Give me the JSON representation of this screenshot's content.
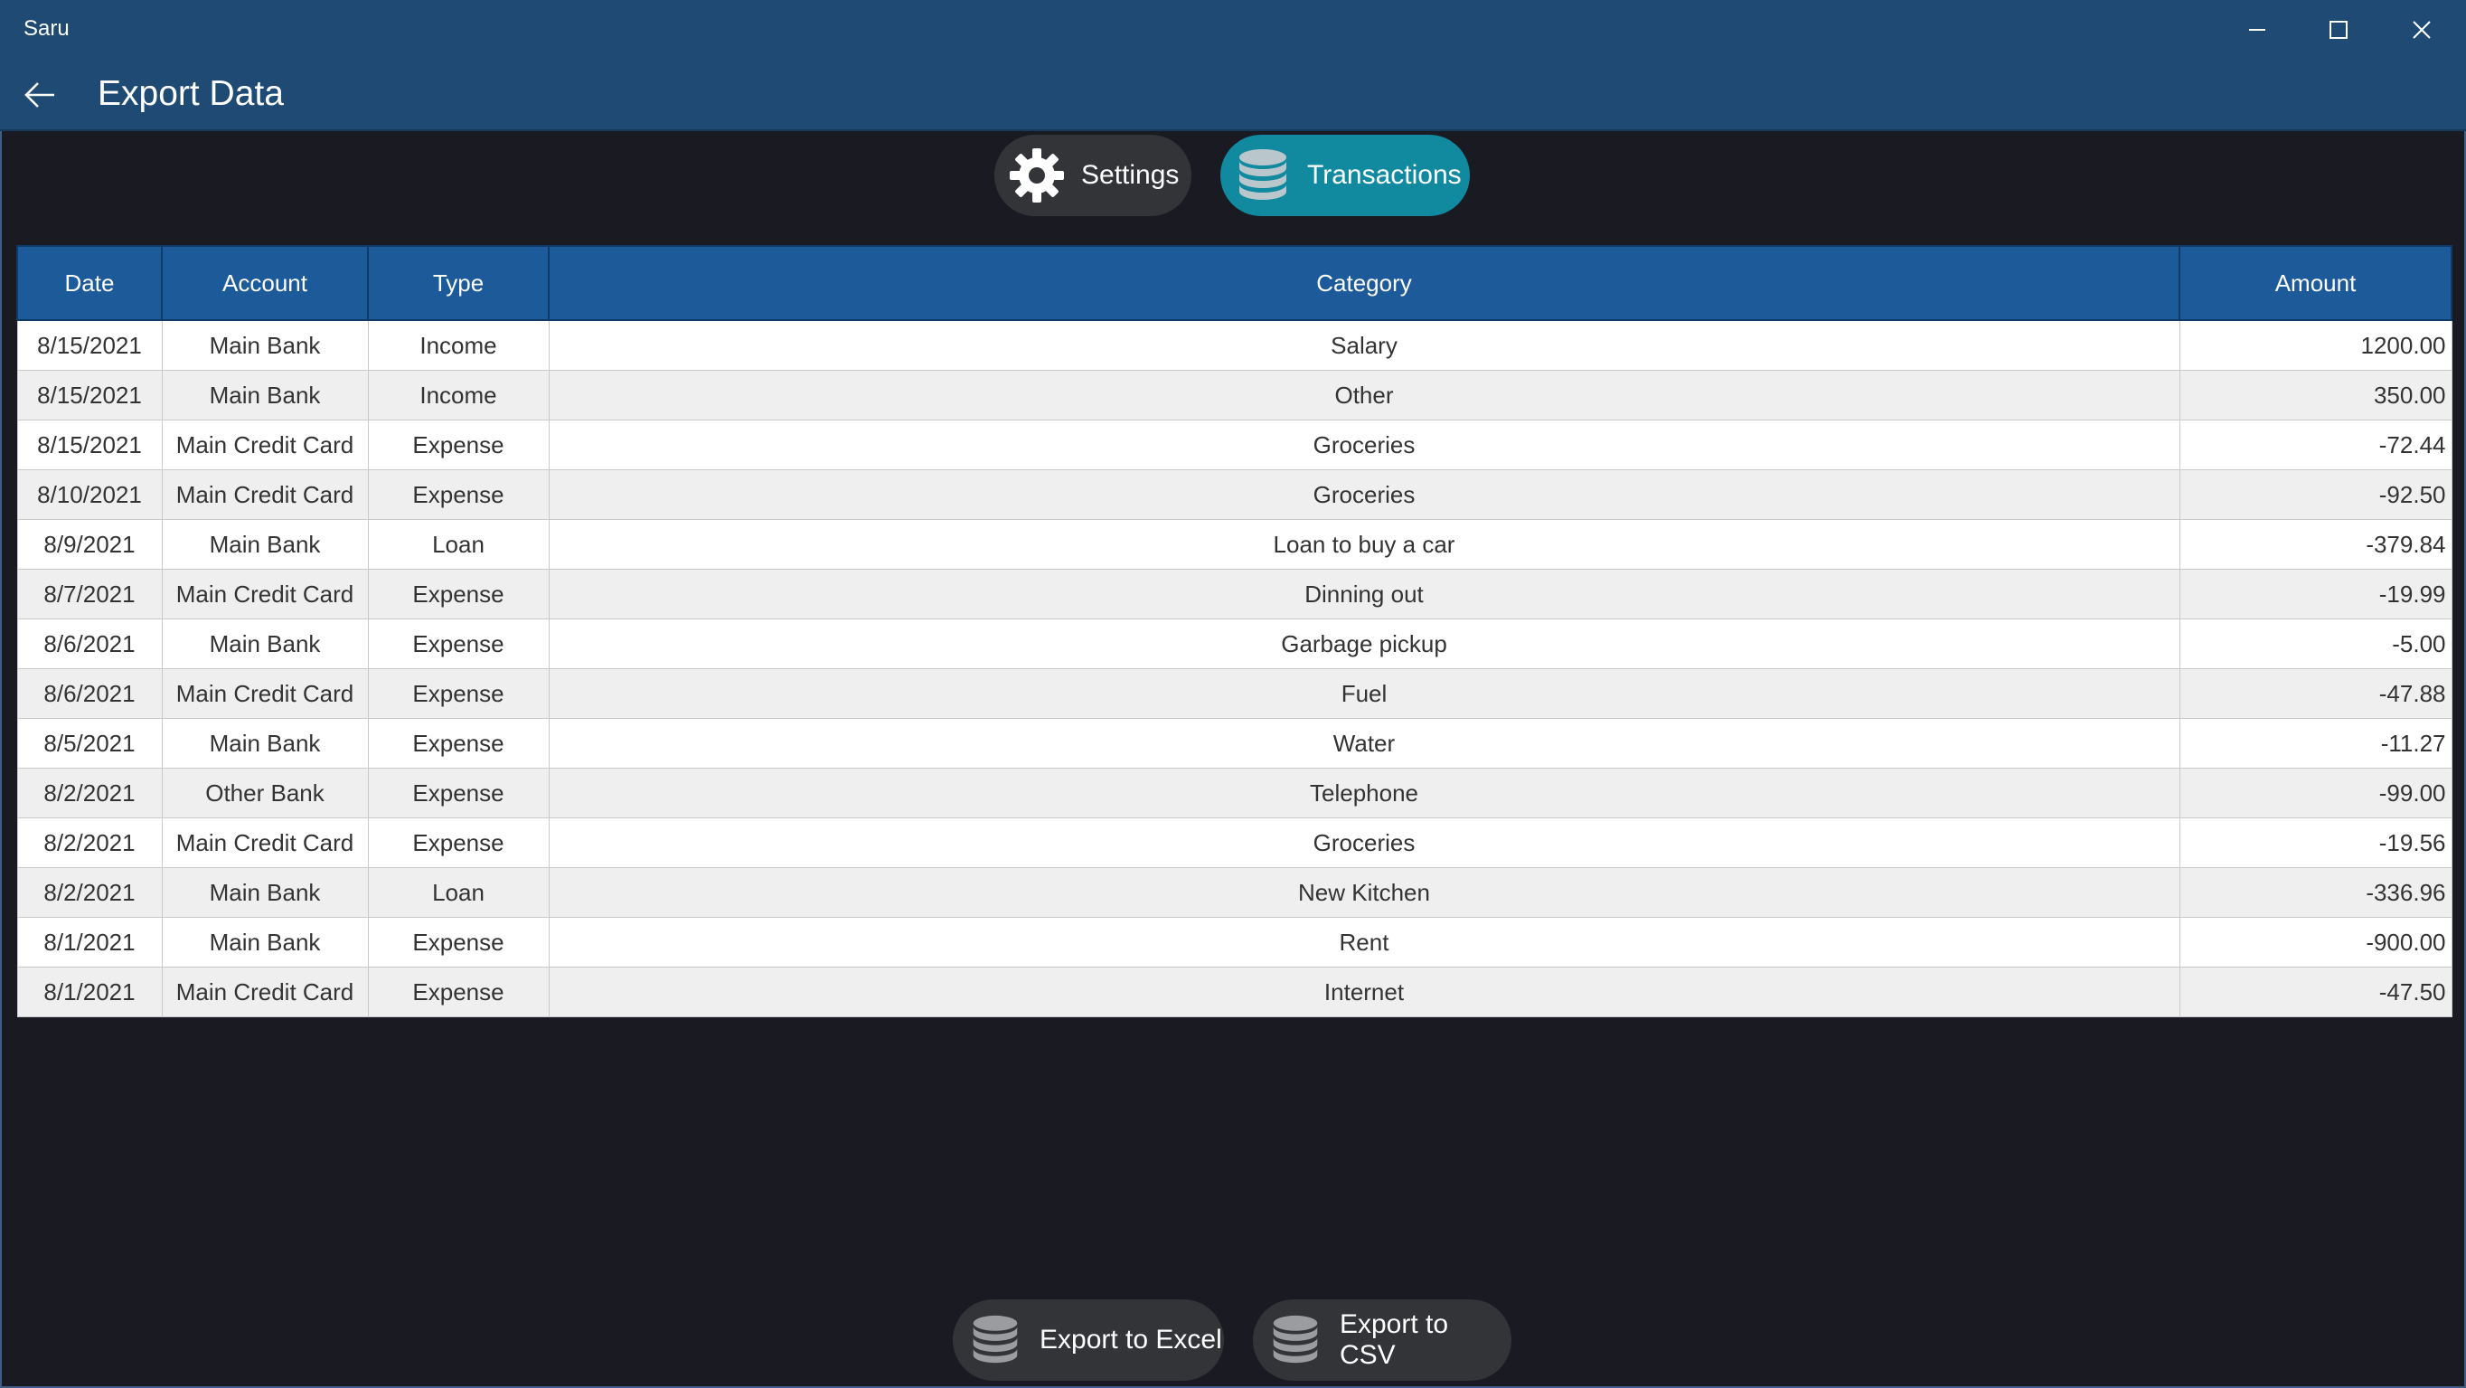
{
  "app": {
    "name": "Saru"
  },
  "header": {
    "title": "Export Data"
  },
  "tabs": [
    {
      "label": "Settings",
      "icon": "gear-icon",
      "active": false
    },
    {
      "label": "Transactions",
      "icon": "database-icon",
      "active": true
    }
  ],
  "table": {
    "columns": [
      "Date",
      "Account",
      "Type",
      "Category",
      "Amount"
    ],
    "rows": [
      [
        "8/15/2021",
        "Main Bank",
        "Income",
        "Salary",
        "1200.00"
      ],
      [
        "8/15/2021",
        "Main Bank",
        "Income",
        "Other",
        "350.00"
      ],
      [
        "8/15/2021",
        "Main Credit Card",
        "Expense",
        "Groceries",
        "-72.44"
      ],
      [
        "8/10/2021",
        "Main Credit Card",
        "Expense",
        "Groceries",
        "-92.50"
      ],
      [
        "8/9/2021",
        "Main Bank",
        "Loan",
        "Loan to buy a car",
        "-379.84"
      ],
      [
        "8/7/2021",
        "Main Credit Card",
        "Expense",
        "Dinning out",
        "-19.99"
      ],
      [
        "8/6/2021",
        "Main Bank",
        "Expense",
        "Garbage pickup",
        "-5.00"
      ],
      [
        "8/6/2021",
        "Main Credit Card",
        "Expense",
        "Fuel",
        "-47.88"
      ],
      [
        "8/5/2021",
        "Main Bank",
        "Expense",
        "Water",
        "-11.27"
      ],
      [
        "8/2/2021",
        "Other Bank",
        "Expense",
        "Telephone",
        "-99.00"
      ],
      [
        "8/2/2021",
        "Main Credit Card",
        "Expense",
        "Groceries",
        "-19.56"
      ],
      [
        "8/2/2021",
        "Main Bank",
        "Loan",
        "New Kitchen",
        "-336.96"
      ],
      [
        "8/1/2021",
        "Main Bank",
        "Expense",
        "Rent",
        "-900.00"
      ],
      [
        "8/1/2021",
        "Main Credit Card",
        "Expense",
        "Internet",
        "-47.50"
      ]
    ]
  },
  "actions": {
    "excel_label": "Export to Excel",
    "csv_label": "Export to CSV"
  },
  "colors": {
    "titlebar": "#1f4a73",
    "background": "#191a22",
    "accent": "#11899f",
    "table_header": "#1d5a99",
    "pill": "#323438"
  }
}
